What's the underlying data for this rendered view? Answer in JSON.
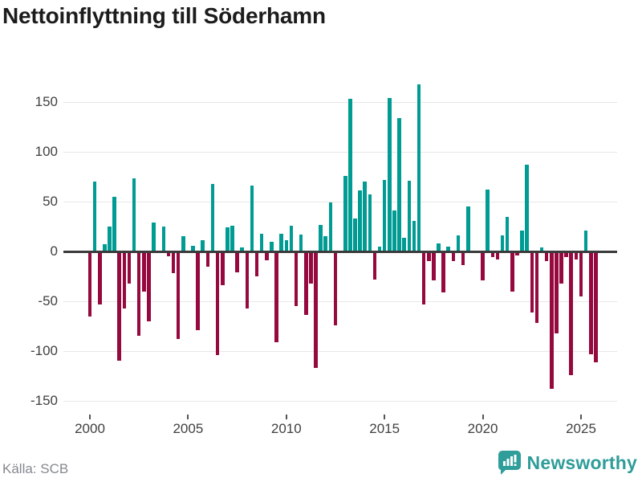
{
  "title": "Nettoinflyttning till Söderhamn",
  "source": "Källa: SCB",
  "logo": {
    "brand": "Newsworthy"
  },
  "colors": {
    "positive_bar": "#009B93",
    "negative_bar": "#96093F",
    "logo_teal": "#2F9D99",
    "gridline": "#e7e7e7",
    "zero_line": "#3a3a3a",
    "axis_text": "#404040",
    "title_text": "#1c1c1c",
    "source_text": "#84888f"
  },
  "chart_data": {
    "type": "bar",
    "title": "Nettoinflyttning till Söderhamn",
    "xlabel": "",
    "ylabel": "",
    "frequency": "quarterly",
    "start_year": 2000,
    "end_year": 2025,
    "grid": true,
    "y_ticks": [
      -150,
      -100,
      -50,
      0,
      50,
      100,
      150
    ],
    "ylim": [
      -172,
      172
    ],
    "x_tick_years": [
      2000,
      2005,
      2010,
      2015,
      2020,
      2025
    ],
    "series_note": "net migration per quarter, 2000Q1-2025Q4",
    "values": [
      -65,
      70,
      -53,
      7,
      25,
      55,
      -110,
      -57,
      -32,
      73,
      -85,
      -40,
      -70,
      29,
      1,
      25,
      -5,
      -22,
      -88,
      15,
      1,
      6,
      -79,
      11,
      -15,
      68,
      -104,
      -34,
      24,
      26,
      -21,
      4,
      -57,
      66,
      -25,
      18,
      -9,
      10,
      -91,
      18,
      11,
      26,
      -55,
      17,
      -64,
      -32,
      -117,
      27,
      15,
      49,
      -74,
      1,
      76,
      153,
      33,
      61,
      70,
      57,
      -28,
      5,
      72,
      154,
      41,
      134,
      14,
      71,
      31,
      168,
      -53,
      -10,
      -29,
      8,
      -41,
      5,
      -10,
      16,
      -14,
      45,
      -2,
      1,
      -29,
      62,
      -6,
      -8,
      16,
      35,
      -40,
      -4,
      21,
      87,
      -61,
      -72,
      4,
      -10,
      -138,
      -82,
      -32,
      -6,
      -124,
      -8,
      -45,
      21,
      -103,
      -111
    ]
  }
}
